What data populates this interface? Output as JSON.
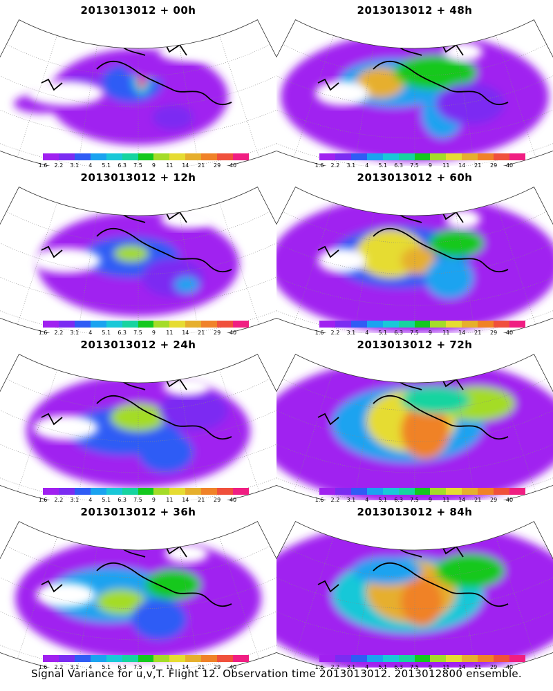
{
  "panels": [
    {
      "title": "2013013012 + 00h",
      "intensity": 0
    },
    {
      "title": "2013013012 + 48h",
      "intensity": 4
    },
    {
      "title": "2013013012 + 12h",
      "intensity": 1
    },
    {
      "title": "2013013012 + 60h",
      "intensity": 5
    },
    {
      "title": "2013013012 + 24h",
      "intensity": 2
    },
    {
      "title": "2013013012 + 72h",
      "intensity": 6
    },
    {
      "title": "2013013012 + 36h",
      "intensity": 3
    },
    {
      "title": "2013013012 + 84h",
      "intensity": 7
    }
  ],
  "colorbar": {
    "labels": [
      "1.6",
      "2.2",
      "3.1",
      "4",
      "5.1",
      "6.3",
      "7.5",
      "9",
      "11",
      "14",
      "21",
      "29",
      "40"
    ],
    "colors": [
      "#a020f0",
      "#7b2cf2",
      "#2f5cf5",
      "#1aa3f0",
      "#19c8d8",
      "#16d4a0",
      "#14c81e",
      "#a4dc28",
      "#e6dc32",
      "#e6af2d",
      "#f08228",
      "#f0503c",
      "#f01e82"
    ]
  },
  "footer": "Signal Variance for u,v,T. Flight 12. Observation time 2013013012. 2013012800 ensemble."
}
